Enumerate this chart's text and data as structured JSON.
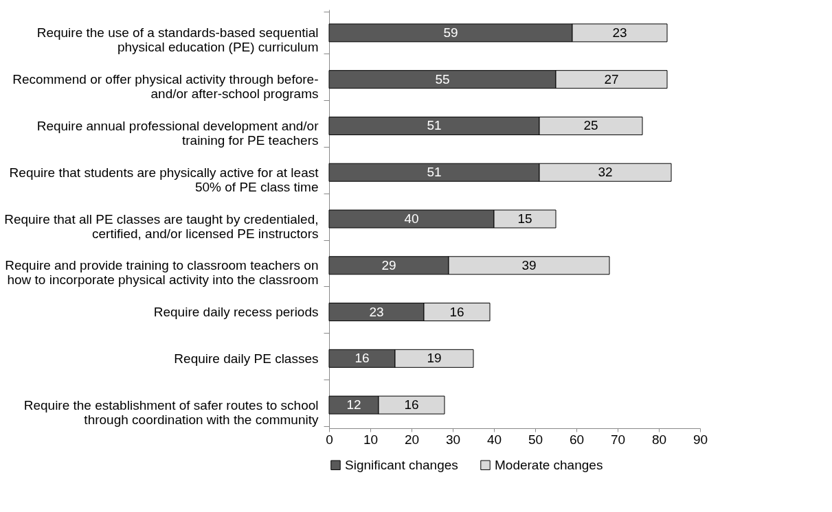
{
  "chart_data": {
    "type": "bar",
    "orientation": "horizontal",
    "stacked": true,
    "data_labels": true,
    "legend": "bottom",
    "grid": false,
    "categories": [
      "Require the use of a standards-based sequential\nphysical education (PE) curriculum",
      "Recommend or offer physical activity through before-\nand/or after-school programs",
      "Require annual professional development and/or\ntraining for PE teachers",
      "Require that students are physically active for at least\n50% of PE class time",
      "Require that all PE classes are taught by credentialed,\ncertified, and/or licensed PE instructors",
      "Require and provide training to classroom teachers on\nhow to incorporate physical activity into the classroom",
      "Require daily recess periods",
      "Require daily PE classes",
      "Require the establishment of safer routes to school\nthrough coordination with the community"
    ],
    "series": [
      {
        "name": "Significant changes",
        "color": "#595959",
        "values": [
          59,
          55,
          51,
          51,
          40,
          29,
          23,
          16,
          12
        ]
      },
      {
        "name": "Moderate changes",
        "color": "#d9d9d9",
        "values": [
          23,
          27,
          25,
          32,
          15,
          39,
          16,
          19,
          16
        ]
      }
    ],
    "xlim": [
      0,
      90
    ],
    "xticks": [
      0,
      10,
      20,
      30,
      40,
      50,
      60,
      70,
      80,
      90
    ]
  }
}
